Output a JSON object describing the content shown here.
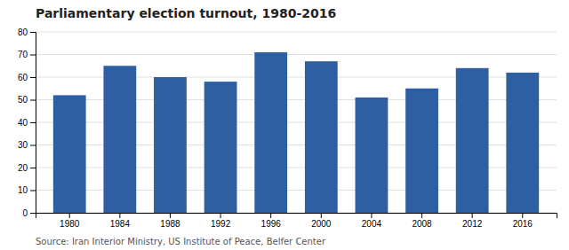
{
  "chart_data": {
    "type": "bar",
    "title": "Parliamentary election turnout, 1980-2016",
    "annotations": [
      "Source: Iran Interior Ministry, US Institute of Peace, Belfer Center"
    ],
    "categories": [
      "1980",
      "1984",
      "1988",
      "1992",
      "1996",
      "2000",
      "2004",
      "2008",
      "2012",
      "2016"
    ],
    "values": [
      52,
      65,
      60,
      58,
      71,
      67,
      51,
      55,
      64,
      62
    ],
    "color": "#2e5fa3",
    "ylim": [
      0,
      80
    ],
    "yticks": [
      0,
      10,
      20,
      30,
      40,
      50,
      60,
      70,
      80
    ],
    "grid": true
  }
}
